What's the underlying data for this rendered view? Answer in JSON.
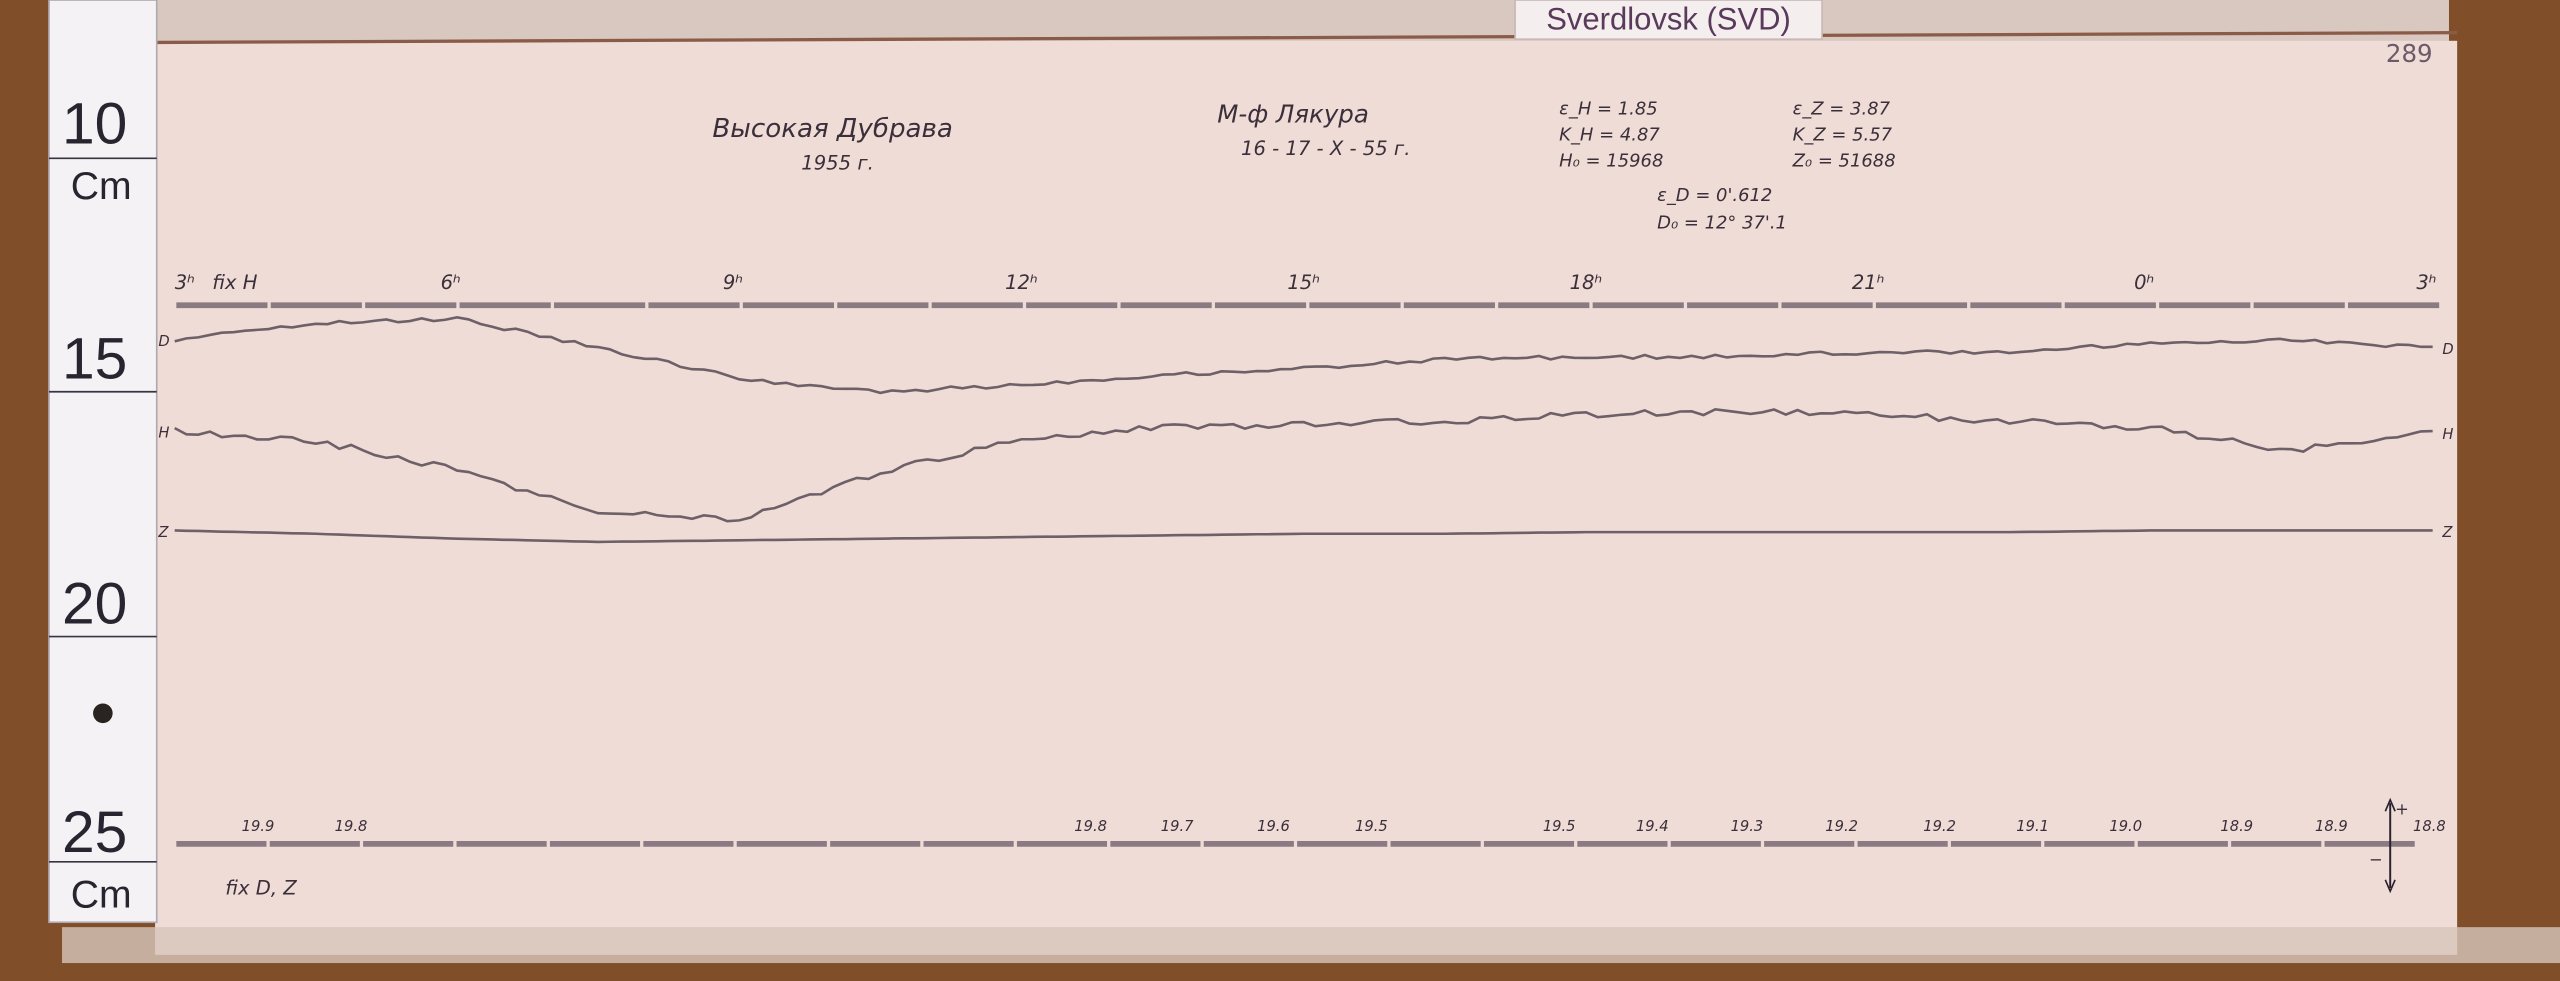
{
  "station_tag": "Sverdlovsk (SVD)",
  "page_number": "289",
  "ruler": {
    "labels": [
      "10",
      "Cm",
      "15",
      "20",
      "25",
      "Cm"
    ]
  },
  "header": {
    "place": "Высокая Дубрава",
    "year": "1955 г.",
    "instrument": "М-ф Лякура",
    "date": "16 - 17 - X - 55 г.",
    "constants_left": [
      "ε_H = 1.85",
      "K_H = 4.87",
      "H₀ = 15968"
    ],
    "constants_right": [
      "ε_Z = 3.87",
      "K_Z = 5.57",
      "Z₀ = 51688"
    ],
    "constants_center": [
      "ε_D = 0'.612",
      "D₀ = 12° 37'.1"
    ]
  },
  "top_axis": {
    "fix_label": "fix H",
    "hour_labels": [
      "3ʰ",
      "6ʰ",
      "9ʰ",
      "12ʰ",
      "15ʰ",
      "18ʰ",
      "21ʰ",
      "0ʰ",
      "3ʰ"
    ]
  },
  "bottom_axis": {
    "fix_label": "fix D, Z",
    "temperature_labels": [
      "19.9",
      "19.8",
      "19.8",
      "19.7",
      "19.6",
      "19.5",
      "19.5",
      "19.4",
      "19.3",
      "19.2",
      "19.2",
      "19.1",
      "19.0",
      "18.9",
      "18.9",
      "18.8"
    ],
    "polarity_plus": "+",
    "polarity_minus": "−"
  },
  "colors": {
    "paper": "#efdcd6",
    "trace": "#6e6068",
    "wood": "#7a4a26",
    "ink": "#3a2f3a"
  },
  "chart_data": {
    "type": "line",
    "x": [
      3,
      4.5,
      6,
      7.5,
      9,
      10.5,
      12,
      13.5,
      15,
      16.5,
      18,
      19.5,
      21,
      22.5,
      0,
      1.5,
      3
    ],
    "xlabel": "",
    "ylabel": "",
    "grid": false,
    "series": [
      {
        "name": "D",
        "values": [
          192,
          202,
          205,
          187,
          168,
          160,
          164,
          170,
          174,
          180,
          181,
          182,
          184,
          184,
          190,
          192,
          187
        ]
      },
      {
        "name": "H",
        "values": [
          136,
          130,
          112,
          86,
          82,
          110,
          132,
          138,
          140,
          142,
          146,
          148,
          146,
          142,
          138,
          124,
          135
        ]
      },
      {
        "name": "Z",
        "values": [
          75,
          73,
          70,
          68,
          69,
          70,
          71,
          72,
          73,
          73,
          74,
          74,
          74,
          74,
          75,
          75,
          75
        ]
      }
    ]
  }
}
